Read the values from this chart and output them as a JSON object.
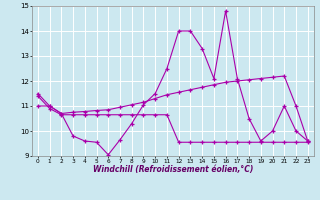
{
  "xlabel": "Windchill (Refroidissement éolien,°C)",
  "background_color": "#cce8f0",
  "grid_color": "#ffffff",
  "line_color": "#aa00aa",
  "xlim": [
    -0.5,
    23.5
  ],
  "ylim": [
    9,
    15
  ],
  "yticks": [
    9,
    10,
    11,
    12,
    13,
    14,
    15
  ],
  "xticks": [
    0,
    1,
    2,
    3,
    4,
    5,
    6,
    7,
    8,
    9,
    10,
    11,
    12,
    13,
    14,
    15,
    16,
    17,
    18,
    19,
    20,
    21,
    22,
    23
  ],
  "series1": [
    11.5,
    11.0,
    10.7,
    9.8,
    9.6,
    9.55,
    9.05,
    9.65,
    10.3,
    11.05,
    11.5,
    12.5,
    14.0,
    14.0,
    13.3,
    12.1,
    14.8,
    12.1,
    10.5,
    9.6,
    10.0,
    11.0,
    10.0,
    9.6
  ],
  "series2": [
    11.4,
    10.9,
    10.65,
    10.65,
    10.65,
    10.65,
    10.65,
    10.65,
    10.65,
    10.65,
    10.65,
    10.65,
    9.55,
    9.55,
    9.55,
    9.55,
    9.55,
    9.55,
    9.55,
    9.55,
    9.55,
    9.55,
    9.55,
    9.55
  ],
  "series3": [
    11.0,
    11.0,
    10.7,
    10.75,
    10.78,
    10.82,
    10.85,
    10.95,
    11.05,
    11.15,
    11.3,
    11.45,
    11.55,
    11.65,
    11.75,
    11.85,
    11.95,
    12.0,
    12.05,
    12.1,
    12.15,
    12.2,
    11.0,
    9.6
  ]
}
